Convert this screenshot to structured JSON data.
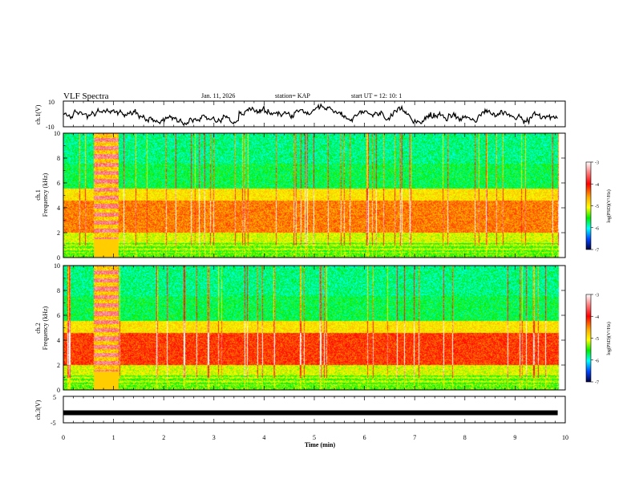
{
  "header": {
    "title": "VLF Spectra",
    "date": "Jan. 11, 2026",
    "station": "station= KAP",
    "start_ut": "start  UT =   12: 10: 1"
  },
  "chart_data": [
    {
      "type": "line",
      "name": "ch1-voltage",
      "ylabel": "ch.1(V)",
      "ylim": [
        -10,
        10
      ],
      "ytick_labels": [
        "10",
        "-10"
      ],
      "description_series": "broadband waveform envelope",
      "x_range_min": [
        0,
        9.85
      ]
    },
    {
      "type": "heatmap",
      "name": "ch1-spectrogram",
      "ylabel_1": "ch.1",
      "ylabel_2": "Frequency  (kHz)",
      "ylim": [
        0,
        10
      ],
      "ytick_labels": [
        "0",
        "2",
        "4",
        "6",
        "8",
        "10"
      ],
      "colorbar": {
        "label": "log(PSD)(V²/Hz)",
        "range": [
          -7,
          -3
        ],
        "tick_labels": [
          "-3",
          "-4",
          "-5",
          "-6",
          "-7"
        ]
      }
    },
    {
      "type": "heatmap",
      "name": "ch2-spectrogram",
      "ylabel_1": "ch.2",
      "ylabel_2": "Frequency  (kHz)",
      "ylim": [
        0,
        10
      ],
      "ytick_labels": [
        "0",
        "2",
        "4",
        "6",
        "8",
        "10"
      ],
      "colorbar": {
        "label": "log(PSD)(V²/Hz)",
        "range": [
          -7,
          -3
        ],
        "tick_labels": [
          "-3",
          "-4",
          "-5",
          "-6",
          "-7"
        ]
      }
    },
    {
      "type": "line",
      "name": "ch3-voltage",
      "ylabel": "ch.3(V)",
      "ylim": [
        -5,
        5
      ],
      "ytick_labels": [
        "5",
        "-5"
      ],
      "level": -1.2
    }
  ],
  "xaxis": {
    "label": "Time  (min)",
    "range": [
      0,
      10
    ],
    "tick_labels": [
      "0",
      "1",
      "2",
      "3",
      "4",
      "5",
      "6",
      "7",
      "8",
      "9",
      "10"
    ]
  }
}
